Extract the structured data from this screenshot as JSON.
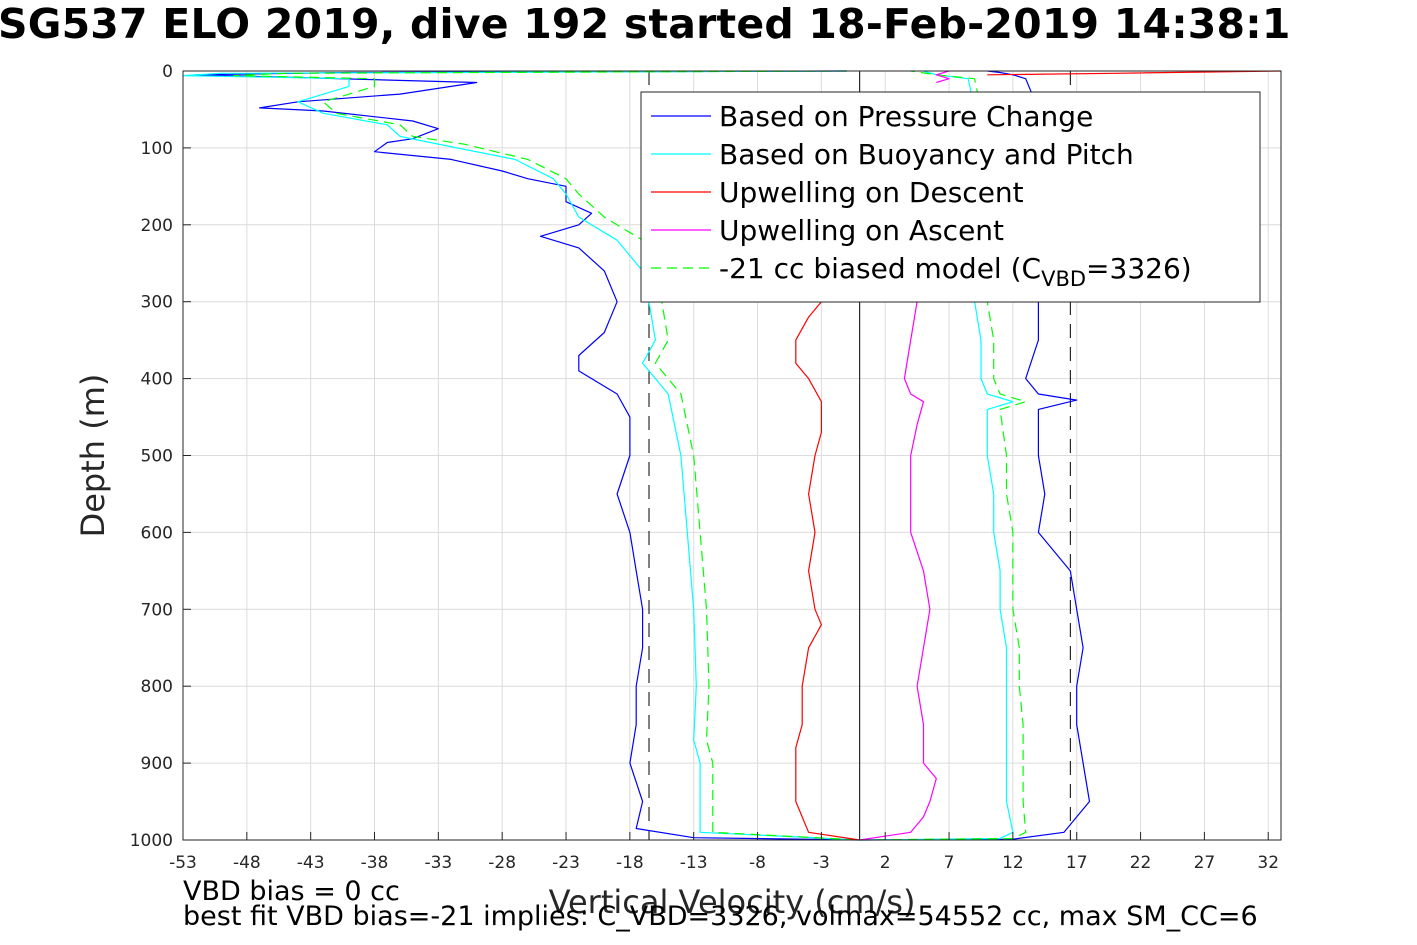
{
  "chart_data": {
    "type": "line",
    "title": "SG537 ELO 2019, dive 192 started 18-Feb-2019 14:38:1",
    "xlabel": "Vertical Velocity (cm/s)",
    "ylabel": "Depth (m)",
    "xlim": [
      -53,
      33
    ],
    "ylim": [
      0,
      1000
    ],
    "y_reversed": true,
    "grid": true,
    "xticks": [
      -53,
      -48,
      -43,
      -38,
      -33,
      -28,
      -23,
      -18,
      -13,
      -8,
      -3,
      2,
      7,
      12,
      17,
      22,
      27,
      32
    ],
    "yticks": [
      0,
      100,
      200,
      300,
      400,
      500,
      600,
      700,
      800,
      900,
      1000
    ],
    "reference_lines": [
      {
        "x": -16.5,
        "style": "dashed",
        "color": "#000000"
      },
      {
        "x": 0,
        "style": "solid",
        "color": "#000000"
      },
      {
        "x": 16.5,
        "style": "dashed",
        "color": "#000000"
      }
    ],
    "legend_position": "top-right",
    "legend": [
      {
        "label": "Based on Pressure Change",
        "color": "#0000ff",
        "style": "solid"
      },
      {
        "label": "Based on Buoyancy and Pitch",
        "color": "#00ffff",
        "style": "solid"
      },
      {
        "label": "Upwelling on Descent",
        "color": "#ff0000",
        "style": "solid"
      },
      {
        "label": "Upwelling on Ascent",
        "color": "#ff00ff",
        "style": "solid"
      },
      {
        "label_pre": "-21 cc biased model (C",
        "label_sub": "VBD",
        "label_post": "=3326)",
        "color": "#00ff00",
        "style": "dashed"
      }
    ],
    "series": [
      {
        "key": "pressure_descent",
        "color": "#0000ff",
        "style": "solid",
        "points": [
          [
            -1,
            0
          ],
          [
            -40,
            2
          ],
          [
            -52,
            5
          ],
          [
            -45,
            8
          ],
          [
            -30,
            15
          ],
          [
            -36,
            30
          ],
          [
            -44,
            40
          ],
          [
            -47,
            48
          ],
          [
            -42,
            52
          ],
          [
            -35,
            65
          ],
          [
            -33,
            75
          ],
          [
            -35,
            88
          ],
          [
            -37,
            93
          ],
          [
            -38,
            105
          ],
          [
            -32,
            115
          ],
          [
            -28,
            130
          ],
          [
            -26,
            140
          ],
          [
            -23,
            150
          ],
          [
            -23,
            170
          ],
          [
            -21,
            185
          ],
          [
            -22,
            200
          ],
          [
            -25,
            215
          ],
          [
            -22,
            230
          ],
          [
            -20,
            260
          ],
          [
            -19,
            300
          ],
          [
            -20,
            340
          ],
          [
            -22,
            370
          ],
          [
            -22,
            390
          ],
          [
            -19,
            420
          ],
          [
            -18,
            450
          ],
          [
            -18,
            500
          ],
          [
            -19,
            550
          ],
          [
            -18,
            600
          ],
          [
            -17.5,
            650
          ],
          [
            -17,
            700
          ],
          [
            -17,
            750
          ],
          [
            -17.5,
            800
          ],
          [
            -17.5,
            850
          ],
          [
            -18,
            900
          ],
          [
            -17,
            950
          ],
          [
            -17.5,
            985
          ],
          [
            -13,
            997
          ],
          [
            0,
            1000
          ]
        ]
      },
      {
        "key": "pressure_ascent",
        "color": "#0000ff",
        "style": "solid",
        "points": [
          [
            0,
            1000
          ],
          [
            12,
            999
          ],
          [
            16,
            990
          ],
          [
            17,
            970
          ],
          [
            18,
            950
          ],
          [
            17.5,
            900
          ],
          [
            17,
            850
          ],
          [
            17,
            800
          ],
          [
            17.5,
            750
          ],
          [
            17,
            700
          ],
          [
            16.5,
            650
          ],
          [
            14,
            600
          ],
          [
            14.5,
            550
          ],
          [
            14,
            500
          ],
          [
            14,
            440
          ],
          [
            17,
            428
          ],
          [
            14,
            420
          ],
          [
            13,
            400
          ],
          [
            14,
            350
          ],
          [
            14,
            300
          ],
          [
            14,
            250
          ],
          [
            13,
            200
          ],
          [
            13,
            150
          ],
          [
            14,
            100
          ],
          [
            14,
            50
          ],
          [
            13,
            10
          ],
          [
            12,
            5
          ],
          [
            11,
            2
          ],
          [
            10,
            0
          ]
        ]
      },
      {
        "key": "buoyancy_descent",
        "color": "#00ffff",
        "style": "solid",
        "points": [
          [
            -1,
            0
          ],
          [
            -50,
            3
          ],
          [
            -53,
            6
          ],
          [
            -40,
            10
          ],
          [
            -40,
            20
          ],
          [
            -44,
            40
          ],
          [
            -42,
            55
          ],
          [
            -37,
            70
          ],
          [
            -36,
            85
          ],
          [
            -33,
            95
          ],
          [
            -27,
            115
          ],
          [
            -24,
            140
          ],
          [
            -23,
            160
          ],
          [
            -22,
            190
          ],
          [
            -19,
            220
          ],
          [
            -17,
            260
          ],
          [
            -16.5,
            300
          ],
          [
            -16,
            350
          ],
          [
            -17,
            380
          ],
          [
            -15,
            420
          ],
          [
            -14,
            500
          ],
          [
            -13.5,
            600
          ],
          [
            -13,
            700
          ],
          [
            -12.8,
            800
          ],
          [
            -13,
            870
          ],
          [
            -12.5,
            900
          ],
          [
            -12.5,
            990
          ],
          [
            0,
            1000
          ]
        ]
      },
      {
        "key": "buoyancy_ascent",
        "color": "#00ffff",
        "style": "solid",
        "points": [
          [
            0,
            1000
          ],
          [
            11,
            998
          ],
          [
            12,
            990
          ],
          [
            11.5,
            950
          ],
          [
            11.5,
            900
          ],
          [
            11.5,
            850
          ],
          [
            11.5,
            800
          ],
          [
            11.5,
            750
          ],
          [
            11,
            700
          ],
          [
            11,
            650
          ],
          [
            10.5,
            600
          ],
          [
            10.5,
            550
          ],
          [
            10,
            500
          ],
          [
            10,
            440
          ],
          [
            12,
            430
          ],
          [
            10,
            420
          ],
          [
            9.5,
            400
          ],
          [
            9.5,
            350
          ],
          [
            9,
            300
          ],
          [
            9,
            250
          ],
          [
            9,
            200
          ],
          [
            9,
            150
          ],
          [
            9,
            100
          ],
          [
            9,
            50
          ],
          [
            8.5,
            10
          ],
          [
            6,
            5
          ],
          [
            5,
            0
          ]
        ]
      },
      {
        "key": "model_descent",
        "color": "#00ff00",
        "style": "dashed",
        "points": [
          [
            -1,
            0
          ],
          [
            -45,
            3
          ],
          [
            -49,
            6
          ],
          [
            -38,
            10
          ],
          [
            -38,
            20
          ],
          [
            -42,
            40
          ],
          [
            -41,
            55
          ],
          [
            -36,
            70
          ],
          [
            -35,
            85
          ],
          [
            -31,
            95
          ],
          [
            -26,
            115
          ],
          [
            -23,
            140
          ],
          [
            -22,
            160
          ],
          [
            -20,
            190
          ],
          [
            -17,
            220
          ],
          [
            -15.5,
            260
          ],
          [
            -15.5,
            300
          ],
          [
            -15,
            350
          ],
          [
            -16,
            380
          ],
          [
            -14,
            420
          ],
          [
            -13,
            500
          ],
          [
            -12.5,
            600
          ],
          [
            -12,
            700
          ],
          [
            -11.8,
            800
          ],
          [
            -12,
            870
          ],
          [
            -11.5,
            900
          ],
          [
            -11.5,
            990
          ],
          [
            0,
            1000
          ]
        ]
      },
      {
        "key": "model_ascent",
        "color": "#00ff00",
        "style": "dashed",
        "points": [
          [
            0,
            1000
          ],
          [
            12,
            998
          ],
          [
            13,
            990
          ],
          [
            12.8,
            950
          ],
          [
            12.8,
            900
          ],
          [
            12.8,
            850
          ],
          [
            12.5,
            800
          ],
          [
            12.5,
            750
          ],
          [
            12,
            700
          ],
          [
            12,
            650
          ],
          [
            12,
            600
          ],
          [
            11.5,
            550
          ],
          [
            11.5,
            500
          ],
          [
            11,
            440
          ],
          [
            13,
            430
          ],
          [
            11,
            420
          ],
          [
            10.5,
            400
          ],
          [
            10.5,
            350
          ],
          [
            10,
            300
          ],
          [
            10,
            250
          ],
          [
            10,
            200
          ],
          [
            10,
            150
          ],
          [
            10,
            100
          ],
          [
            9.5,
            50
          ],
          [
            9,
            10
          ],
          [
            6,
            5
          ],
          [
            4,
            0
          ]
        ]
      },
      {
        "key": "upwelling_descent",
        "color": "#ff0000",
        "style": "solid",
        "points": [
          [
            -3,
            300
          ],
          [
            -4,
            320
          ],
          [
            -5,
            350
          ],
          [
            -5,
            380
          ],
          [
            -4,
            400
          ],
          [
            -3,
            430
          ],
          [
            -3,
            470
          ],
          [
            -3.5,
            500
          ],
          [
            -4,
            550
          ],
          [
            -3.5,
            600
          ],
          [
            -4,
            650
          ],
          [
            -3.5,
            700
          ],
          [
            -3,
            720
          ],
          [
            -4,
            750
          ],
          [
            -4.5,
            800
          ],
          [
            -4.5,
            850
          ],
          [
            -5,
            880
          ],
          [
            -5,
            915
          ],
          [
            -5,
            950
          ],
          [
            -4,
            990
          ],
          [
            0,
            1000
          ]
        ]
      },
      {
        "key": "upwelling_ascent",
        "color": "#ff00ff",
        "style": "solid",
        "points": [
          [
            0,
            1000
          ],
          [
            4,
            990
          ],
          [
            5,
            970
          ],
          [
            5.5,
            950
          ],
          [
            6,
            920
          ],
          [
            5,
            900
          ],
          [
            5,
            850
          ],
          [
            4.5,
            800
          ],
          [
            5,
            750
          ],
          [
            5.5,
            700
          ],
          [
            5,
            650
          ],
          [
            4,
            600
          ],
          [
            4,
            550
          ],
          [
            4,
            500
          ],
          [
            4.5,
            460
          ],
          [
            5,
            430
          ],
          [
            4,
            420
          ],
          [
            3.5,
            400
          ],
          [
            4,
            350
          ],
          [
            4.5,
            300
          ]
        ]
      },
      {
        "key": "upwelling_ascent_surface",
        "color": "#ff00ff",
        "style": "solid",
        "points": [
          [
            7,
            0
          ],
          [
            6,
            5
          ],
          [
            7,
            10
          ],
          [
            6,
            15
          ]
        ]
      },
      {
        "key": "upwelling_descent_surface",
        "color": "#ff0000",
        "style": "solid",
        "points": [
          [
            10,
            5
          ],
          [
            20,
            3
          ],
          [
            33,
            0
          ]
        ]
      }
    ]
  },
  "footer": {
    "bias": "VBD bias = 0 cc",
    "fit": "best fit VBD bias=-21 implies: C_VBD=3326, volmax=54552 cc, max SM_CC=6"
  }
}
